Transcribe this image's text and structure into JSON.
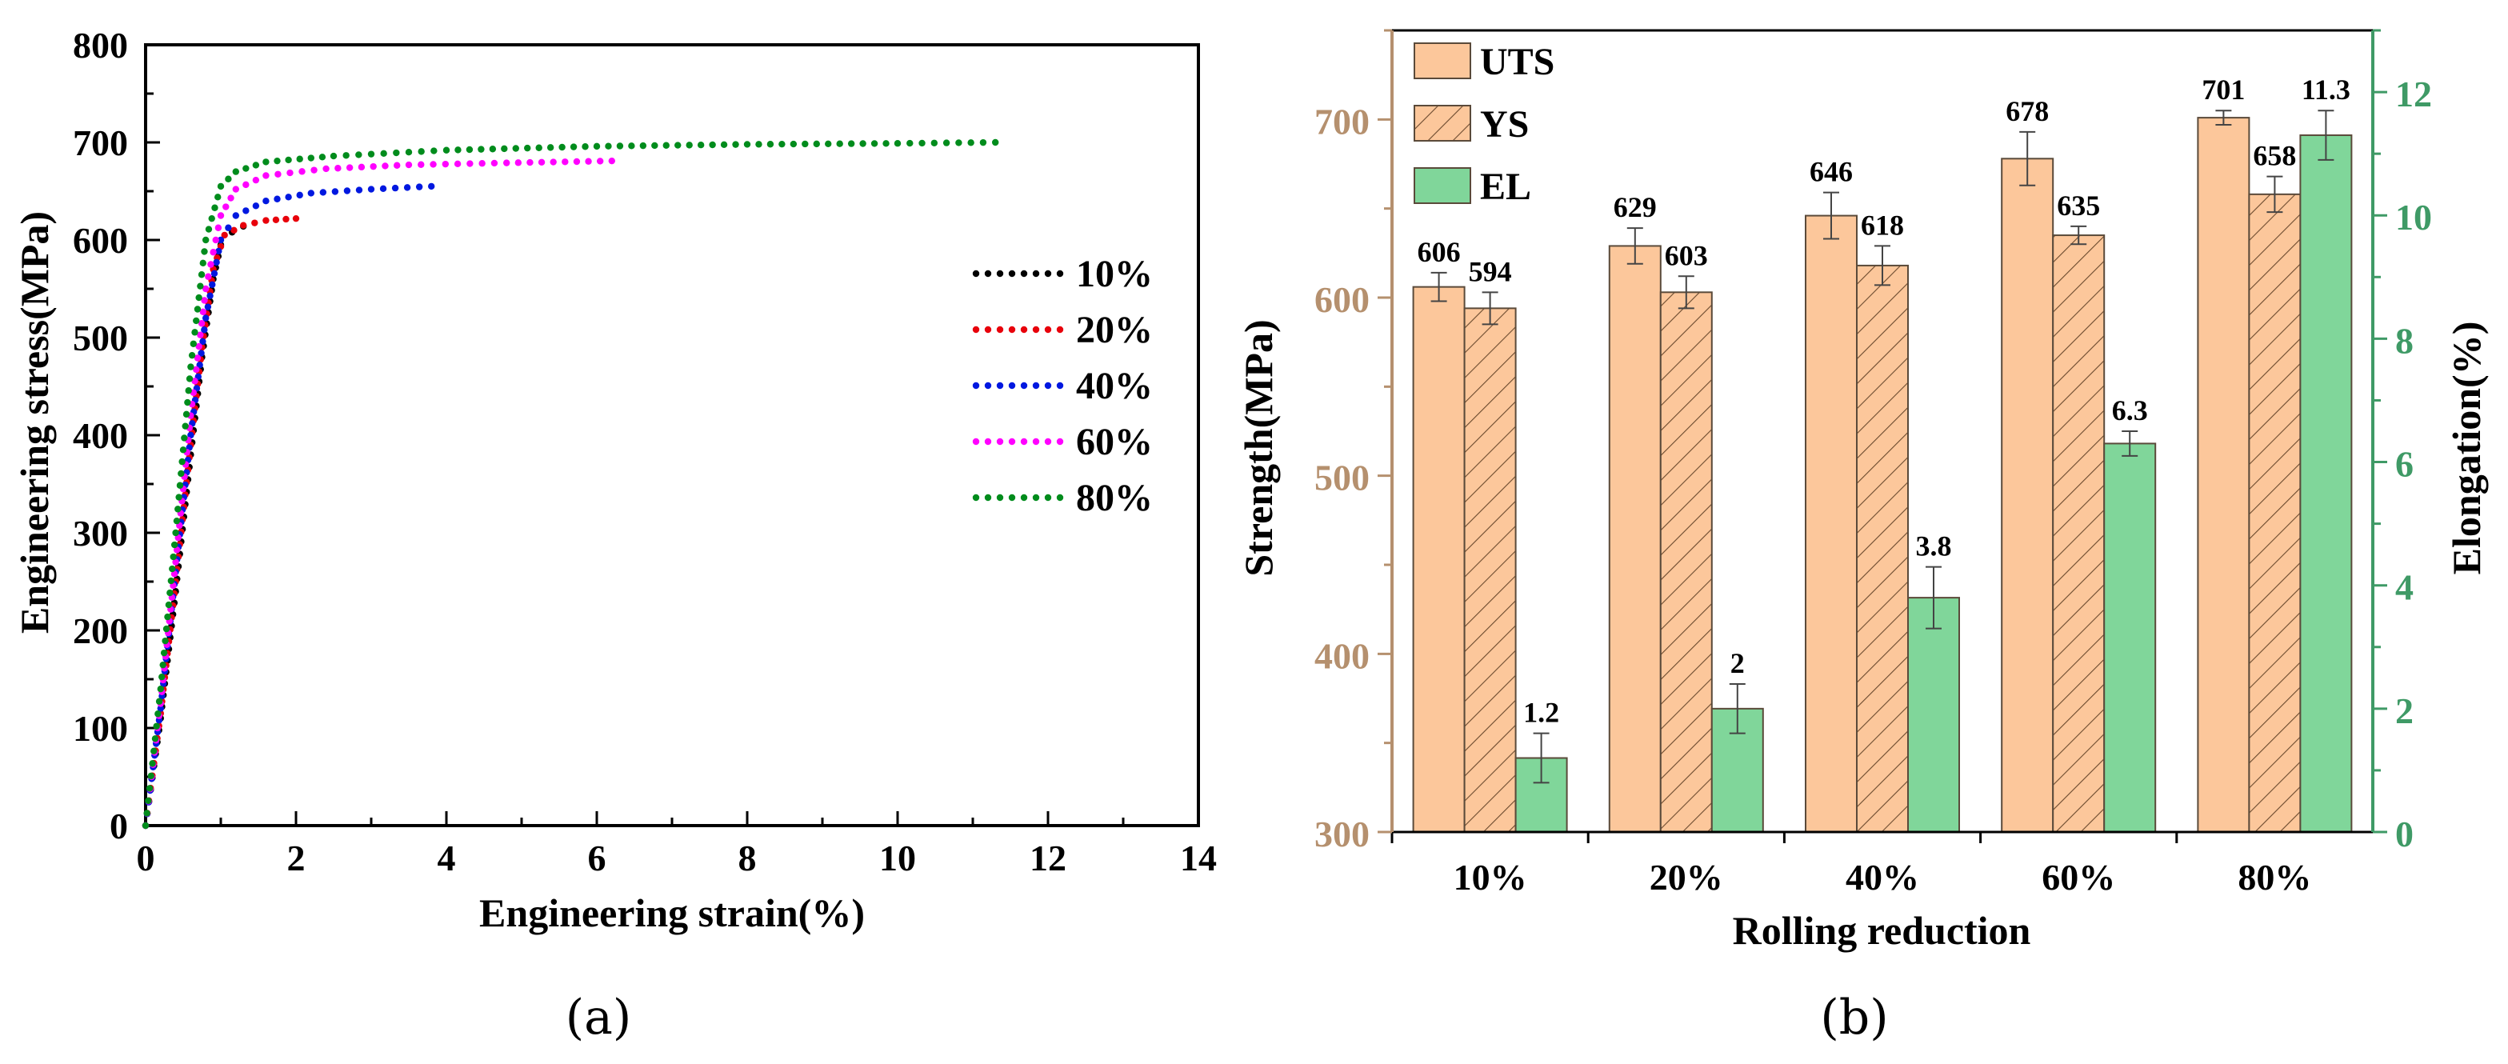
{
  "chart_data": [
    {
      "type": "scatter",
      "panel_label": "(a)",
      "xlabel": "Engineering strain(%)",
      "ylabel": "Engineering stress(MPa)",
      "xlim": [
        0,
        14
      ],
      "ylim": [
        0,
        800
      ],
      "xticks": [
        "0",
        "2",
        "4",
        "6",
        "8",
        "10",
        "12",
        "14"
      ],
      "yticks": [
        "0",
        "100",
        "200",
        "300",
        "400",
        "500",
        "600",
        "700",
        "800"
      ],
      "legend_position": "right",
      "series": [
        {
          "name": "10%",
          "color": "#000000",
          "points": [
            [
              0,
              0
            ],
            [
              0.2,
              110
            ],
            [
              0.4,
              240
            ],
            [
              0.6,
              380
            ],
            [
              0.75,
              480
            ],
            [
              0.9,
              560
            ],
            [
              1.0,
              595
            ],
            [
              1.15,
              608
            ],
            [
              1.3,
              614
            ]
          ]
        },
        {
          "name": "20%",
          "color": "#e8000b",
          "points": [
            [
              0,
              0
            ],
            [
              0.2,
              115
            ],
            [
              0.4,
              250
            ],
            [
              0.6,
              390
            ],
            [
              0.75,
              490
            ],
            [
              0.9,
              570
            ],
            [
              1.05,
              605
            ],
            [
              1.3,
              615
            ],
            [
              1.6,
              620
            ],
            [
              2.0,
              622
            ]
          ]
        },
        {
          "name": "40%",
          "color": "#0018e0",
          "points": [
            [
              0,
              0
            ],
            [
              0.2,
              120
            ],
            [
              0.4,
              260
            ],
            [
              0.6,
              400
            ],
            [
              0.8,
              520
            ],
            [
              1.0,
              600
            ],
            [
              1.2,
              625
            ],
            [
              1.6,
              640
            ],
            [
              2.2,
              648
            ],
            [
              3.0,
              652
            ],
            [
              3.8,
              655
            ]
          ]
        },
        {
          "name": "60%",
          "color": "#ff00ff",
          "points": [
            [
              0,
              0
            ],
            [
              0.2,
              125
            ],
            [
              0.4,
              270
            ],
            [
              0.6,
              420
            ],
            [
              0.8,
              550
            ],
            [
              1.0,
              625
            ],
            [
              1.2,
              652
            ],
            [
              1.6,
              666
            ],
            [
              2.4,
              673
            ],
            [
              3.5,
              677
            ],
            [
              4.8,
              679
            ],
            [
              6.2,
              681
            ]
          ]
        },
        {
          "name": "80%",
          "color": "#008c1c",
          "points": [
            [
              0,
              0
            ],
            [
              0.2,
              140
            ],
            [
              0.4,
              300
            ],
            [
              0.6,
              470
            ],
            [
              0.8,
              600
            ],
            [
              1.0,
              655
            ],
            [
              1.2,
              670
            ],
            [
              1.6,
              680
            ],
            [
              2.5,
              686
            ],
            [
              4.0,
              692
            ],
            [
              6.0,
              696
            ],
            [
              8.0,
              698
            ],
            [
              10.0,
              699
            ],
            [
              11.3,
              700
            ]
          ]
        }
      ]
    },
    {
      "type": "bar",
      "panel_label": "(b)",
      "xlabel": "Rolling reduction",
      "ylabel_left": "Strength(MPa)",
      "ylabel_right": "Elongation(%)",
      "categories": [
        "10%",
        "20%",
        "40%",
        "60%",
        "80%"
      ],
      "ylim_left": [
        300,
        750
      ],
      "yticks_left": [
        "300",
        "400",
        "500",
        "600",
        "700"
      ],
      "ylim_right": [
        0,
        13
      ],
      "yticks_right": [
        "0",
        "2",
        "4",
        "6",
        "8",
        "10",
        "12"
      ],
      "left_axis_color": "#b5906e",
      "right_axis_color": "#3f9a66",
      "legend_position": "top-left",
      "series": [
        {
          "name": "UTS",
          "axis": "left",
          "fill": "#fcc79b",
          "hatch": false,
          "values": [
            606,
            629,
            646,
            678,
            701
          ],
          "labels": [
            "606",
            "629",
            "646",
            "678",
            "701"
          ],
          "errors": [
            8,
            10,
            13,
            15,
            4
          ]
        },
        {
          "name": "YS",
          "axis": "left",
          "fill": "#fcc79b",
          "hatch": true,
          "values": [
            594,
            603,
            618,
            635,
            658
          ],
          "labels": [
            "594",
            "603",
            "618",
            "635",
            "658"
          ],
          "errors": [
            9,
            9,
            11,
            5,
            10
          ]
        },
        {
          "name": "EL",
          "axis": "right",
          "fill": "#80d69a",
          "hatch": false,
          "values": [
            1.2,
            2,
            3.8,
            6.3,
            11.3
          ],
          "labels": [
            "1.2",
            "2",
            "3.8",
            "6.3",
            "11.3"
          ],
          "errors": [
            0.4,
            0.4,
            0.5,
            0.2,
            0.4
          ]
        }
      ]
    }
  ]
}
